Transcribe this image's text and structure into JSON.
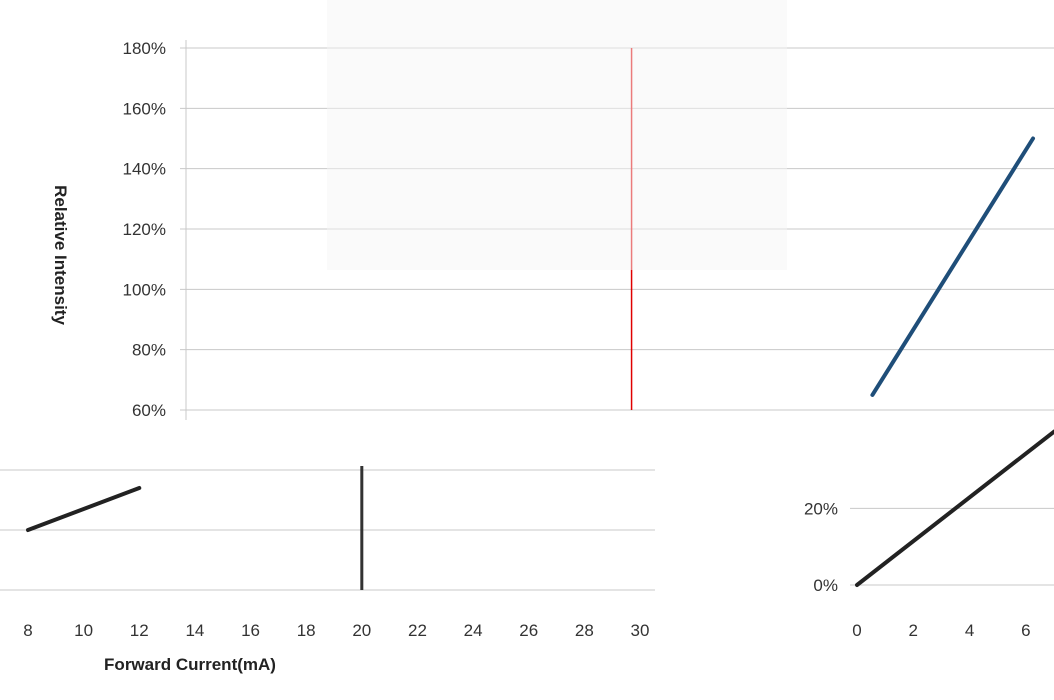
{
  "chart_data": [
    {
      "type": "line",
      "title": "",
      "xlabel": "",
      "ylabel": "Relative Intensity",
      "yticks": [
        "180%",
        "160%",
        "140%",
        "120%",
        "100%",
        "80%",
        "60%"
      ],
      "ylim": [
        60,
        180
      ],
      "xlim": [
        9,
        30
      ],
      "grid": true,
      "series": [
        {
          "x": [
            26,
            30
          ],
          "y": [
            65,
            150
          ],
          "color": "#1f4e79"
        }
      ],
      "marker_x": 20,
      "marker_color": "#e00000"
    },
    {
      "type": "line",
      "title": "",
      "xlabel": "Forward Current(mA)",
      "ylabel": "",
      "xticks": [
        "8",
        "10",
        "12",
        "14",
        "16",
        "18",
        "20",
        "22",
        "24",
        "26",
        "28",
        "30"
      ],
      "xlim": [
        8,
        30
      ],
      "grid": true,
      "series": [
        {
          "x": [
            8,
            12
          ],
          "y": [
            40,
            47
          ],
          "color": "#222222"
        }
      ],
      "marker_x": 20
    },
    {
      "type": "line",
      "title": "",
      "xlabel": "",
      "ylabel": "",
      "yticks": [
        "20%",
        "0%"
      ],
      "xticks": [
        "0",
        "2",
        "4",
        "6"
      ],
      "xlim": [
        0,
        7
      ],
      "ylim": [
        0,
        30
      ],
      "grid": true,
      "series": [
        {
          "x": [
            0,
            7
          ],
          "y": [
            0,
            40
          ],
          "color": "#222222"
        }
      ]
    }
  ]
}
